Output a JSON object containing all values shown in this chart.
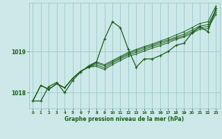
{
  "background_color": "#cce8e8",
  "plot_bg_color": "#cce8e8",
  "line_color": "#1a5c1a",
  "grid_color": "#9dc8c8",
  "xlabel": "Graphe pression niveau de la mer (hPa)",
  "yticks": [
    1018,
    1019
  ],
  "ylim": [
    1017.62,
    1020.18
  ],
  "xlim": [
    -0.5,
    23.5
  ],
  "xticks": [
    0,
    1,
    2,
    3,
    4,
    5,
    6,
    7,
    8,
    9,
    10,
    11,
    12,
    13,
    14,
    15,
    16,
    17,
    18,
    19,
    20,
    21,
    22,
    23
  ],
  "series": [
    {
      "x": [
        0,
        1,
        2,
        3,
        4,
        5,
        6,
        7,
        8,
        9,
        10,
        11,
        12,
        13,
        14,
        15,
        16,
        17,
        18,
        19,
        20,
        21,
        22,
        23
      ],
      "y": [
        1017.8,
        1017.8,
        1018.15,
        1018.25,
        1018.0,
        1018.3,
        1018.5,
        1018.65,
        1018.75,
        1019.3,
        1019.72,
        1019.58,
        1019.05,
        1018.62,
        1018.82,
        1018.82,
        1018.9,
        1019.0,
        1019.15,
        1019.2,
        1019.45,
        1019.6,
        1019.48,
        1020.05
      ]
    },
    {
      "x": [
        0,
        1,
        2,
        3,
        4,
        5,
        6,
        7,
        8,
        9,
        10,
        11,
        12,
        13,
        14,
        15,
        16,
        17,
        18,
        19,
        20,
        21,
        22,
        23
      ],
      "y": [
        1017.8,
        1018.18,
        1018.08,
        1018.22,
        1018.12,
        1018.35,
        1018.52,
        1018.62,
        1018.75,
        1018.68,
        1018.78,
        1018.88,
        1018.98,
        1019.05,
        1019.12,
        1019.18,
        1019.25,
        1019.32,
        1019.4,
        1019.48,
        1019.58,
        1019.68,
        1019.72,
        1020.1
      ]
    },
    {
      "x": [
        0,
        1,
        2,
        3,
        4,
        5,
        6,
        7,
        8,
        9,
        10,
        11,
        12,
        13,
        14,
        15,
        16,
        17,
        18,
        19,
        20,
        21,
        22,
        23
      ],
      "y": [
        1017.8,
        1018.18,
        1018.08,
        1018.22,
        1018.12,
        1018.35,
        1018.52,
        1018.62,
        1018.72,
        1018.65,
        1018.75,
        1018.85,
        1018.95,
        1019.02,
        1019.09,
        1019.15,
        1019.22,
        1019.28,
        1019.35,
        1019.42,
        1019.52,
        1019.62,
        1019.65,
        1020.0
      ]
    },
    {
      "x": [
        0,
        1,
        2,
        3,
        4,
        5,
        6,
        7,
        8,
        9,
        10,
        11,
        12,
        13,
        14,
        15,
        16,
        17,
        18,
        19,
        20,
        21,
        22,
        23
      ],
      "y": [
        1017.8,
        1018.18,
        1018.08,
        1018.22,
        1018.12,
        1018.35,
        1018.52,
        1018.62,
        1018.68,
        1018.6,
        1018.72,
        1018.82,
        1018.92,
        1018.98,
        1019.05,
        1019.12,
        1019.18,
        1019.25,
        1019.32,
        1019.38,
        1019.48,
        1019.58,
        1019.6,
        1019.95
      ]
    },
    {
      "x": [
        0,
        1,
        2,
        3,
        4,
        5,
        6,
        7,
        8,
        9,
        10,
        11,
        12,
        13,
        14,
        15,
        16,
        17,
        18,
        19,
        20,
        21,
        22,
        23
      ],
      "y": [
        1017.8,
        1018.18,
        1018.08,
        1018.22,
        1018.12,
        1018.35,
        1018.52,
        1018.62,
        1018.64,
        1018.56,
        1018.68,
        1018.78,
        1018.88,
        1018.94,
        1019.01,
        1019.08,
        1019.14,
        1019.21,
        1019.29,
        1019.35,
        1019.44,
        1019.54,
        1019.55,
        1019.9
      ]
    }
  ]
}
